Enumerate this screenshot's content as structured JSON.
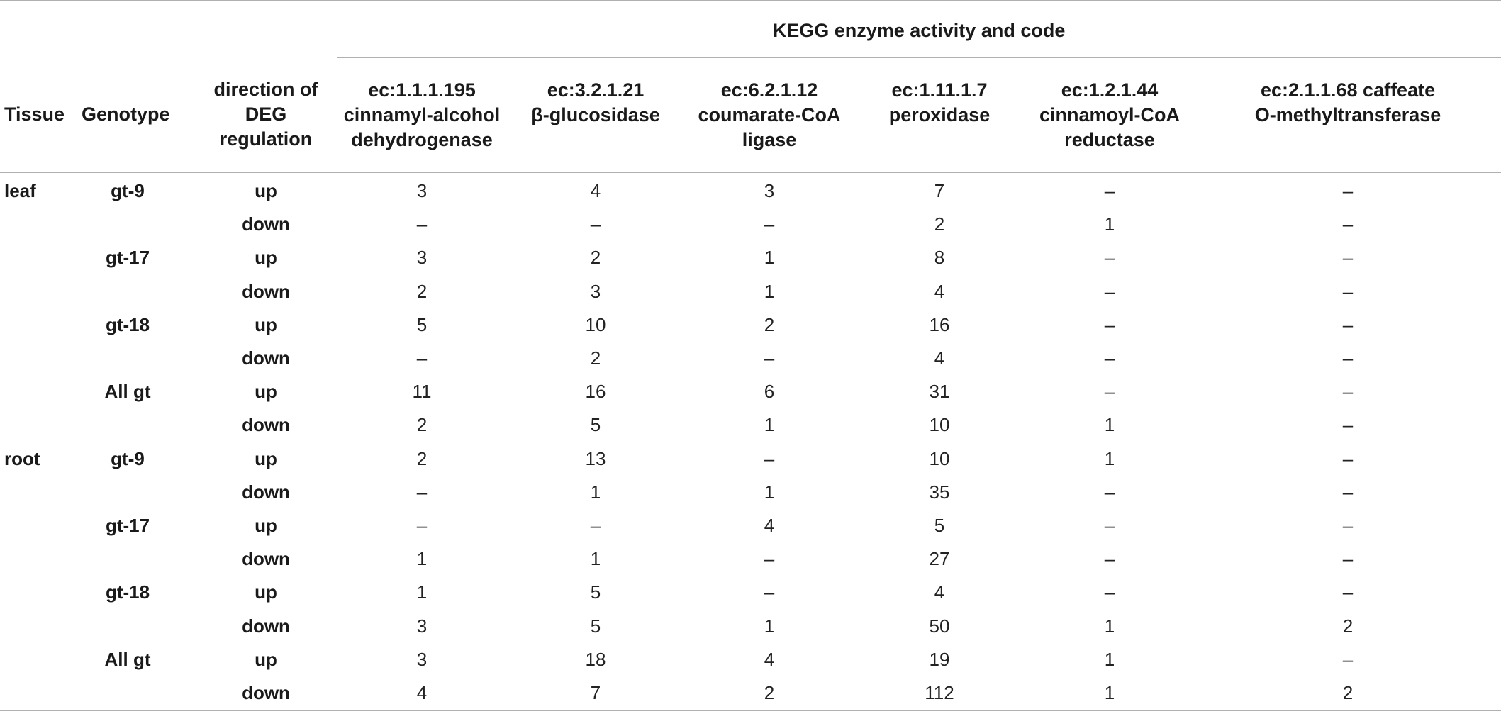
{
  "table": {
    "group_header": "KEGG enzyme activity and code",
    "columns": {
      "tissue": "Tissue",
      "genotype": "Genotype",
      "direction": [
        "direction of",
        "DEG",
        "regulation"
      ],
      "enzymes": [
        [
          "ec:1.1.1.195",
          "cinnamyl-alcohol",
          "dehydrogenase"
        ],
        [
          "ec:3.2.1.21",
          "β-glucosidase"
        ],
        [
          "ec:6.2.1.12",
          "coumarate-CoA",
          "ligase"
        ],
        [
          "ec:1.11.1.7",
          "peroxidase"
        ],
        [
          "ec:1.2.1.44",
          "cinnamoyl-CoA",
          "reductase"
        ],
        [
          "ec:2.1.1.68 caffeate",
          "O-methyltransferase"
        ]
      ]
    },
    "rows": [
      {
        "tissue": "leaf",
        "genotype": "gt-9",
        "direction": "up",
        "values": [
          "3",
          "4",
          "3",
          "7",
          "–",
          "–"
        ]
      },
      {
        "tissue": "",
        "genotype": "",
        "direction": "down",
        "values": [
          "–",
          "–",
          "–",
          "2",
          "1",
          "–"
        ]
      },
      {
        "tissue": "",
        "genotype": "gt-17",
        "direction": "up",
        "values": [
          "3",
          "2",
          "1",
          "8",
          "–",
          "–"
        ]
      },
      {
        "tissue": "",
        "genotype": "",
        "direction": "down",
        "values": [
          "2",
          "3",
          "1",
          "4",
          "–",
          "–"
        ]
      },
      {
        "tissue": "",
        "genotype": "gt-18",
        "direction": "up",
        "values": [
          "5",
          "10",
          "2",
          "16",
          "–",
          "–"
        ]
      },
      {
        "tissue": "",
        "genotype": "",
        "direction": "down",
        "values": [
          "–",
          "2",
          "–",
          "4",
          "–",
          "–"
        ]
      },
      {
        "tissue": "",
        "genotype": "All gt",
        "direction": "up",
        "values": [
          "11",
          "16",
          "6",
          "31",
          "–",
          "–"
        ]
      },
      {
        "tissue": "",
        "genotype": "",
        "direction": "down",
        "values": [
          "2",
          "5",
          "1",
          "10",
          "1",
          "–"
        ]
      },
      {
        "tissue": "root",
        "genotype": "gt-9",
        "direction": "up",
        "values": [
          "2",
          "13",
          "–",
          "10",
          "1",
          "–"
        ]
      },
      {
        "tissue": "",
        "genotype": "",
        "direction": "down",
        "values": [
          "–",
          "1",
          "1",
          "35",
          "–",
          "–"
        ]
      },
      {
        "tissue": "",
        "genotype": "gt-17",
        "direction": "up",
        "values": [
          "–",
          "–",
          "4",
          "5",
          "–",
          "–"
        ]
      },
      {
        "tissue": "",
        "genotype": "",
        "direction": "down",
        "values": [
          "1",
          "1",
          "–",
          "27",
          "–",
          "–"
        ]
      },
      {
        "tissue": "",
        "genotype": "gt-18",
        "direction": "up",
        "values": [
          "1",
          "5",
          "–",
          "4",
          "–",
          "–"
        ]
      },
      {
        "tissue": "",
        "genotype": "",
        "direction": "down",
        "values": [
          "3",
          "5",
          "1",
          "50",
          "1",
          "2"
        ]
      },
      {
        "tissue": "",
        "genotype": "All gt",
        "direction": "up",
        "values": [
          "3",
          "18",
          "4",
          "19",
          "1",
          "–"
        ]
      },
      {
        "tissue": "",
        "genotype": "",
        "direction": "down",
        "values": [
          "4",
          "7",
          "2",
          "112",
          "1",
          "2"
        ]
      }
    ]
  }
}
